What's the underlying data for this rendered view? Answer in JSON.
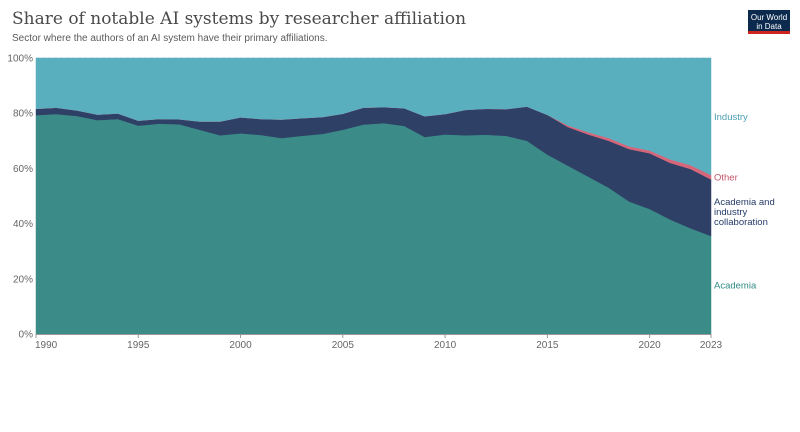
{
  "header": {
    "title": "Share of notable AI systems by researcher affiliation",
    "subtitle": "Sector where the authors of an AI system have their primary affiliations."
  },
  "logo": {
    "line1": "Our World",
    "line2": "in Data"
  },
  "colors": {
    "academia": "#3b8c88",
    "collaboration": "#2e4066",
    "other": "#d6677a",
    "industry": "#5aafbf",
    "label_industry": "#4a9fb3",
    "label_other": "#c4566a",
    "label_collaboration": "#243a66",
    "label_academia": "#2e8a85",
    "axis_text": "#666666",
    "grid": "#dddddd"
  },
  "chart_data": {
    "type": "area",
    "stacked": true,
    "normalized": true,
    "title": "Share of notable AI systems by researcher affiliation",
    "subtitle": "Sector where the authors of an AI system have their primary affiliations.",
    "x": [
      1990,
      1991,
      1992,
      1993,
      1994,
      1995,
      1996,
      1997,
      1998,
      1999,
      2000,
      2001,
      2002,
      2003,
      2004,
      2005,
      2006,
      2007,
      2008,
      2009,
      2010,
      2011,
      2012,
      2013,
      2014,
      2015,
      2016,
      2017,
      2018,
      2019,
      2020,
      2021,
      2022,
      2023
    ],
    "x_ticks": [
      "1990",
      "1995",
      "2000",
      "2005",
      "2010",
      "2015",
      "2020",
      "2023"
    ],
    "y_ticks": [
      "0%",
      "20%",
      "40%",
      "60%",
      "80%",
      "100%"
    ],
    "ylim": [
      0,
      100
    ],
    "grid": "horizontal",
    "legend": "right, inline labels",
    "series": [
      {
        "name": "Academia",
        "values": [
          79.3,
          79.7,
          79.0,
          77.5,
          77.9,
          75.5,
          76.2,
          76.0,
          74.0,
          72.0,
          72.7,
          72.1,
          71.0,
          71.8,
          72.5,
          74.0,
          75.9,
          76.4,
          75.4,
          71.4,
          72.3,
          72.0,
          72.2,
          71.8,
          70.0,
          65.0,
          61.0,
          57.0,
          53.0,
          48.0,
          45.3,
          41.5,
          38.3,
          35.5
        ]
      },
      {
        "name": "Academia and industry collaboration",
        "values": [
          2.3,
          2.3,
          2.0,
          2.0,
          2.0,
          1.8,
          1.7,
          1.8,
          3.0,
          5.0,
          5.8,
          5.8,
          6.7,
          6.4,
          6.1,
          5.8,
          6.1,
          5.8,
          6.4,
          7.5,
          7.4,
          9.2,
          9.4,
          9.7,
          12.4,
          14.4,
          14.0,
          15.3,
          17.0,
          19.0,
          20.2,
          20.5,
          21.5,
          20.5
        ]
      },
      {
        "name": "Other",
        "values": [
          0,
          0,
          0,
          0,
          0,
          0,
          0,
          0,
          0,
          0,
          0,
          0,
          0,
          0,
          0,
          0,
          0,
          0,
          0,
          0,
          0,
          0,
          0,
          0,
          0,
          0,
          0.6,
          0.8,
          1.0,
          1.0,
          1.0,
          1.3,
          1.4,
          1.6
        ]
      },
      {
        "name": "Industry",
        "values": [
          18.4,
          18.0,
          19.0,
          20.5,
          20.1,
          22.7,
          22.1,
          22.2,
          23.0,
          23.0,
          21.5,
          22.1,
          22.3,
          21.8,
          21.4,
          20.2,
          18.0,
          17.8,
          18.2,
          21.1,
          20.3,
          18.8,
          18.4,
          18.5,
          17.6,
          20.6,
          24.4,
          26.9,
          29.0,
          32.0,
          33.5,
          36.7,
          38.8,
          42.4
        ]
      }
    ]
  }
}
